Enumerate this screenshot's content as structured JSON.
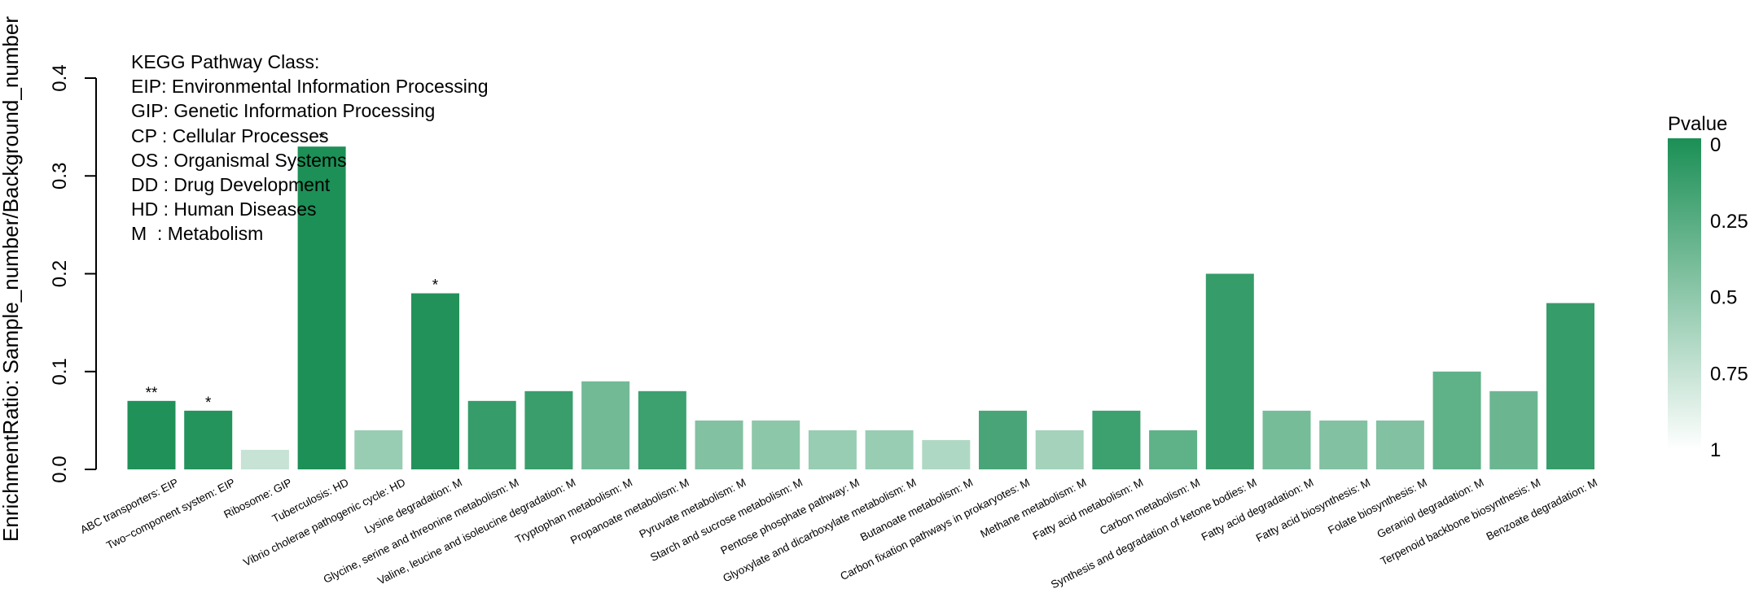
{
  "chart_data": {
    "type": "bar",
    "ylabel": "EnrichmentRatio: Sample_number/Background_number",
    "xlabel": "",
    "ylim": [
      0,
      0.4
    ],
    "yticks": [
      "0.0",
      "0.1",
      "0.2",
      "0.3",
      "0.4"
    ],
    "categories": [
      "ABC transporters:  EIP",
      "Two−component system:  EIP",
      "Ribosome:  GIP",
      "Tuberculosis:  HD",
      "Vibrio cholerae pathogenic cycle:  HD",
      "Lysine degradation:  M",
      "Glycine, serine and threonine metabolism:  M",
      "Valine, leucine and isoleucine degradation:  M",
      "Tryptophan metabolism:  M",
      "Propanoate metabolism:  M",
      "Pyruvate metabolism:  M",
      "Starch and sucrose metabolism:  M",
      "Pentose phosphate pathway:  M",
      "Glyoxylate and dicarboxylate metabolism:  M",
      "Butanoate metabolism:  M",
      "Carbon fixation pathways in prokaryotes:  M",
      "Methane metabolism:  M",
      "Fatty acid metabolism:  M",
      "Carbon metabolism:  M",
      "Synthesis and degradation of ketone bodies:  M",
      "Fatty acid degradation:  M",
      "Fatty acid biosynthesis:  M",
      "Folate biosynthesis:  M",
      "Geraniol degradation:  M",
      "Terpenoid backbone biosynthesis:  M",
      "Benzoate degradation:  M"
    ],
    "values": [
      0.07,
      0.06,
      0.02,
      0.33,
      0.04,
      0.18,
      0.07,
      0.08,
      0.09,
      0.08,
      0.05,
      0.05,
      0.04,
      0.04,
      0.03,
      0.06,
      0.04,
      0.06,
      0.04,
      0.2,
      0.06,
      0.05,
      0.05,
      0.1,
      0.08,
      0.17
    ],
    "pvalues": [
      0.02,
      0.04,
      0.75,
      0.01,
      0.55,
      0.03,
      0.12,
      0.13,
      0.38,
      0.15,
      0.45,
      0.5,
      0.55,
      0.55,
      0.65,
      0.2,
      0.6,
      0.15,
      0.3,
      0.12,
      0.4,
      0.45,
      0.45,
      0.3,
      0.35,
      0.12
    ],
    "significance": [
      "**",
      "*",
      "",
      "*",
      "",
      "*",
      "",
      "",
      "",
      "",
      "",
      "",
      "",
      "",
      "",
      "",
      "",
      "",
      "",
      "",
      "",
      "",
      "",
      "",
      "",
      ""
    ],
    "annotation": [
      "KEGG Pathway Class:",
      "EIP: Environmental Information Processing",
      "GIP: Genetic Information Processing",
      "CP : Cellular Processes",
      "OS : Organismal Systems",
      "DD : Drug Development",
      "HD : Human Diseases",
      "M  : Metabolism"
    ],
    "colorbar": {
      "title": "Pvalue",
      "ticks": [
        "0",
        "0.25",
        "0.5",
        "0.75",
        "1"
      ],
      "range": [
        0,
        1
      ],
      "high_color": "#1b8f55",
      "low_color": "#ffffff"
    },
    "grid": false,
    "legend_position": "top-left"
  }
}
